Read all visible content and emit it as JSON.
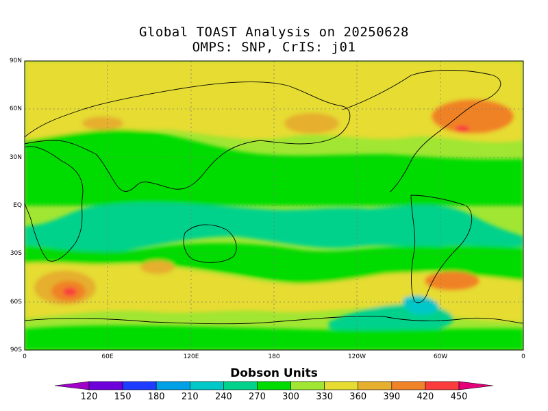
{
  "title_line1": "Global TOAST Analysis on 20250628",
  "title_line2": "OMPS: SNP, CrIS: j01",
  "lat_labels": [
    "90N",
    "60N",
    "30N",
    "EQ",
    "30S",
    "60S",
    "90S"
  ],
  "lon_labels": [
    "0",
    "60E",
    "120E",
    "180",
    "120W",
    "60W",
    "0"
  ],
  "colorbar": {
    "title": "Dobson Units",
    "labels": [
      "120",
      "150",
      "180",
      "210",
      "240",
      "270",
      "300",
      "330",
      "360",
      "390",
      "420",
      "450"
    ],
    "colors": [
      "#a000c8",
      "#6e00dc",
      "#1e3cff",
      "#00a0e6",
      "#00c8c8",
      "#00d28c",
      "#00dc00",
      "#a0e632",
      "#e6dc32",
      "#e6af2d",
      "#f08228",
      "#fa3c3c",
      "#e6007a"
    ]
  },
  "map_colors": {
    "base": "#a0e632",
    "band_green": "#00dc00",
    "band_teal": "#00d28c",
    "cyan": "#00c8c8",
    "yellow": "#e6dc32",
    "gold": "#e6af2d",
    "orange": "#f08228",
    "red": "#fa3c3c"
  }
}
